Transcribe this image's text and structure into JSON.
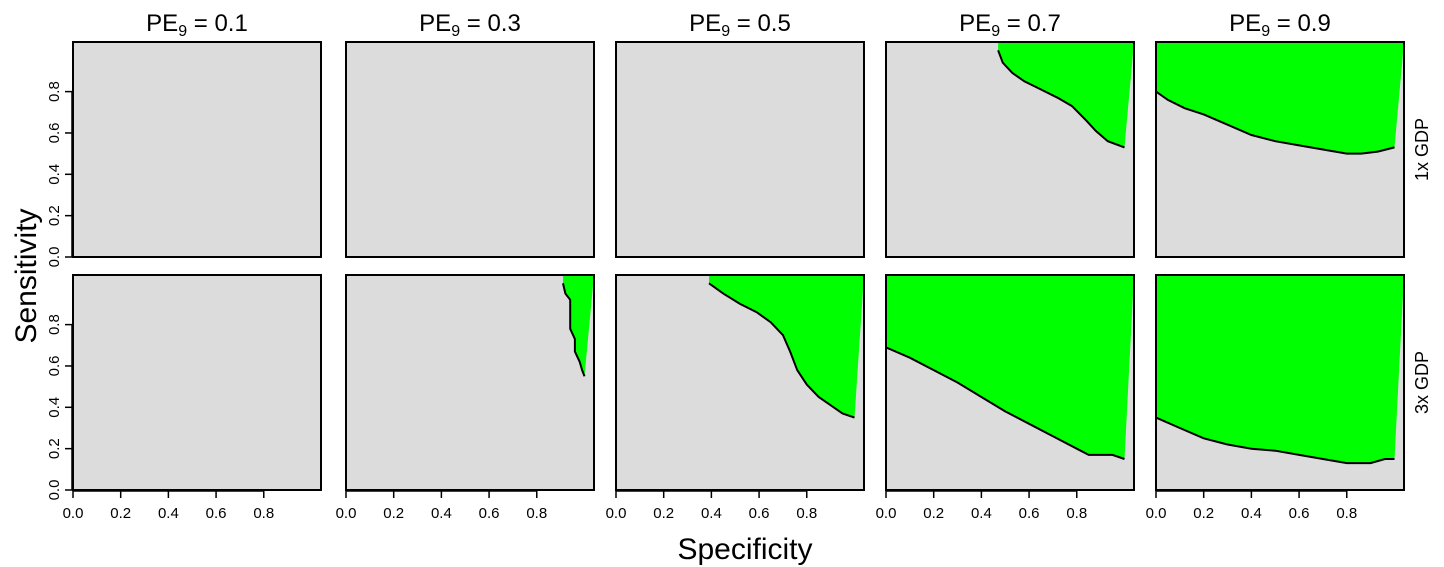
{
  "chart_data": {
    "type": "area",
    "title": "",
    "xlabel": "Specificity",
    "ylabel": "Sensitivity",
    "xlim": [
      0,
      1
    ],
    "ylim": [
      0,
      1
    ],
    "x_ticks": [
      "0.0",
      "0.2",
      "0.4",
      "0.6",
      "0.8"
    ],
    "y_ticks": [
      "0.0",
      "0.2",
      "0.4",
      "0.6",
      "0.8"
    ],
    "col_labels": [
      {
        "base": "PE",
        "sub": "9",
        "rest": " = 0.1"
      },
      {
        "base": "PE",
        "sub": "9",
        "rest": " = 0.3"
      },
      {
        "base": "PE",
        "sub": "9",
        "rest": " = 0.5"
      },
      {
        "base": "PE",
        "sub": "9",
        "rest": " = 0.7"
      },
      {
        "base": "PE",
        "sub": "9",
        "rest": " = 0.9"
      }
    ],
    "row_labels": [
      "1x GDP",
      "3x GDP"
    ],
    "colors": {
      "background": "#dcdcdc",
      "region": "#00ff00",
      "boundary": "#000000"
    },
    "panels": [
      {
        "row": 0,
        "col": 0,
        "boundary": [],
        "corner": "none"
      },
      {
        "row": 0,
        "col": 1,
        "boundary": [],
        "corner": "none"
      },
      {
        "row": 0,
        "col": 2,
        "boundary": [],
        "corner": "none"
      },
      {
        "row": 0,
        "col": 3,
        "corner": "top-right",
        "boundary": [
          [
            0.47,
            1.0
          ],
          [
            0.49,
            0.94
          ],
          [
            0.53,
            0.89
          ],
          [
            0.58,
            0.85
          ],
          [
            0.65,
            0.81
          ],
          [
            0.72,
            0.77
          ],
          [
            0.78,
            0.73
          ],
          [
            0.84,
            0.66
          ],
          [
            0.88,
            0.61
          ],
          [
            0.93,
            0.56
          ],
          [
            1.0,
            0.53
          ]
        ]
      },
      {
        "row": 0,
        "col": 4,
        "corner": "top-right",
        "boundary": [
          [
            0.0,
            0.8
          ],
          [
            0.05,
            0.76
          ],
          [
            0.12,
            0.72
          ],
          [
            0.2,
            0.69
          ],
          [
            0.3,
            0.64
          ],
          [
            0.4,
            0.59
          ],
          [
            0.5,
            0.56
          ],
          [
            0.6,
            0.54
          ],
          [
            0.7,
            0.52
          ],
          [
            0.8,
            0.5
          ],
          [
            0.86,
            0.5
          ],
          [
            0.93,
            0.51
          ],
          [
            1.0,
            0.53
          ]
        ]
      },
      {
        "row": 1,
        "col": 0,
        "boundary": [],
        "corner": "none"
      },
      {
        "row": 1,
        "col": 1,
        "corner": "top-right",
        "boundary": [
          [
            0.91,
            1.0
          ],
          [
            0.92,
            0.95
          ],
          [
            0.94,
            0.92
          ],
          [
            0.94,
            0.78
          ],
          [
            0.96,
            0.73
          ],
          [
            0.96,
            0.67
          ],
          [
            0.98,
            0.62
          ],
          [
            0.99,
            0.58
          ],
          [
            1.0,
            0.55
          ]
        ]
      },
      {
        "row": 1,
        "col": 2,
        "corner": "top-right",
        "boundary": [
          [
            0.39,
            1.0
          ],
          [
            0.45,
            0.95
          ],
          [
            0.52,
            0.9
          ],
          [
            0.59,
            0.86
          ],
          [
            0.65,
            0.81
          ],
          [
            0.7,
            0.75
          ],
          [
            0.73,
            0.67
          ],
          [
            0.76,
            0.58
          ],
          [
            0.8,
            0.51
          ],
          [
            0.85,
            0.45
          ],
          [
            0.9,
            0.41
          ],
          [
            0.95,
            0.37
          ],
          [
            1.0,
            0.35
          ]
        ]
      },
      {
        "row": 1,
        "col": 3,
        "corner": "top-right",
        "boundary": [
          [
            0.0,
            0.69
          ],
          [
            0.1,
            0.64
          ],
          [
            0.2,
            0.58
          ],
          [
            0.3,
            0.52
          ],
          [
            0.4,
            0.45
          ],
          [
            0.5,
            0.38
          ],
          [
            0.6,
            0.32
          ],
          [
            0.7,
            0.26
          ],
          [
            0.8,
            0.2
          ],
          [
            0.85,
            0.17
          ],
          [
            0.95,
            0.17
          ],
          [
            1.0,
            0.15
          ]
        ]
      },
      {
        "row": 1,
        "col": 4,
        "corner": "top-right",
        "boundary": [
          [
            0.0,
            0.35
          ],
          [
            0.1,
            0.3
          ],
          [
            0.2,
            0.25
          ],
          [
            0.3,
            0.22
          ],
          [
            0.4,
            0.2
          ],
          [
            0.5,
            0.19
          ],
          [
            0.6,
            0.17
          ],
          [
            0.7,
            0.15
          ],
          [
            0.8,
            0.13
          ],
          [
            0.9,
            0.13
          ],
          [
            0.96,
            0.15
          ],
          [
            1.0,
            0.15
          ]
        ]
      }
    ]
  }
}
